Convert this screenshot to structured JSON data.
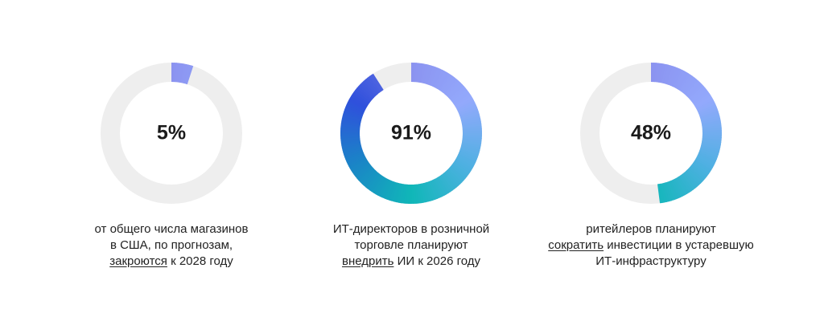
{
  "chart_data": [
    {
      "type": "pie",
      "value": 5,
      "value_label": "5%",
      "caption_lines": [
        {
          "before": "от общего числа магазинов",
          "link": "",
          "after": ""
        },
        {
          "before": "в США, по прогнозам,",
          "link": "",
          "after": ""
        },
        {
          "before": "",
          "link": "закроются",
          "after": " к 2028 году"
        }
      ]
    },
    {
      "type": "pie",
      "value": 91,
      "value_label": "91%",
      "caption_lines": [
        {
          "before": "ИТ-директоров в розничной",
          "link": "",
          "after": ""
        },
        {
          "before": "торговле планируют",
          "link": "",
          "after": ""
        },
        {
          "before": "",
          "link": "внедрить",
          "after": " ИИ к 2026 году"
        }
      ]
    },
    {
      "type": "pie",
      "value": 48,
      "value_label": "48%",
      "caption_lines": [
        {
          "before": "ритейлеров планируют",
          "link": "",
          "after": ""
        },
        {
          "before": "",
          "link": "сократить",
          "after": " инвестиции в устаревшую"
        },
        {
          "before": "ИТ-инфраструктуру",
          "link": "",
          "after": ""
        }
      ]
    }
  ],
  "colors": {
    "track": "#eeeeee",
    "gradient": [
      "#8b93f0",
      "#93a9fc",
      "#4fb0e2",
      "#10b7b8",
      "#1a86c6",
      "#2f50dc",
      "#6f78e6"
    ],
    "text": "#1f1f1f"
  }
}
